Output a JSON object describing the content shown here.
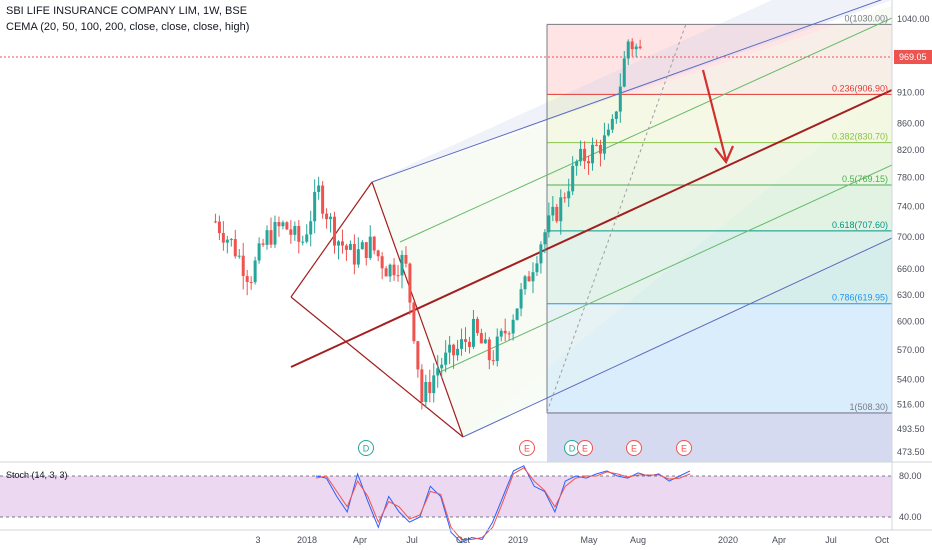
{
  "header": {
    "symbol_line": "SBI LIFE INSURANCE COMPANY LIM, 1W, BSE",
    "indicator_line": "CEMA (20, 50, 100, 200, close, close, close, high)"
  },
  "price_tag": {
    "value": "969.05",
    "color": "#ef5350"
  },
  "stoch_label": "Stoch (14, 3, 3)",
  "colors": {
    "up": "#26a69a",
    "down": "#ef5350",
    "pitchfork": "#a31f1f",
    "arrow": "#d32f2f",
    "stoch_k": "#2962ff",
    "stoch_d": "#ef5350",
    "stoch_band": "#e1bee7"
  },
  "chart_data": [
    {
      "type": "candlestick",
      "y_axis": {
        "scale": "log",
        "ticks": [
          "1040.00",
          "969.05",
          "910.00",
          "860.00",
          "820.00",
          "780.00",
          "740.00",
          "700.00",
          "660.00",
          "630.00",
          "600.00",
          "570.00",
          "540.00",
          "516.00",
          "493.50",
          "473.50"
        ]
      },
      "x_axis": {
        "ticks": [
          "3",
          "2018",
          "Apr",
          "Jul",
          "Oct",
          "2019",
          "May",
          "Aug",
          "2020",
          "Apr",
          "Jul",
          "Oct"
        ]
      },
      "fib_levels": [
        {
          "label": "0(1030.00)",
          "price": 1030.0,
          "color": "#787b86"
        },
        {
          "label": "0.236(906.90)",
          "price": 906.9,
          "color": "#e53935"
        },
        {
          "label": "0.382(830.70)",
          "price": 830.7,
          "color": "#8bc34a"
        },
        {
          "label": "0.5(769.15)",
          "price": 769.15,
          "color": "#4caf50"
        },
        {
          "label": "0.618(707.60)",
          "price": 707.6,
          "color": "#009688"
        },
        {
          "label": "0.786(619.95)",
          "price": 619.95,
          "color": "#2196f3"
        },
        {
          "label": "1(508.30)",
          "price": 508.3,
          "color": "#787b86"
        }
      ],
      "event_markers": [
        {
          "label": "D",
          "x": "Feb 2018",
          "color": "#26a69a"
        },
        {
          "label": "E",
          "x": "Jan 2019",
          "color": "#ef5350"
        },
        {
          "label": "D",
          "x": "Apr 2019",
          "color": "#26a69a"
        },
        {
          "label": "E",
          "x": "Apr 2019",
          "color": "#ef5350"
        },
        {
          "label": "E",
          "x": "Jul 2019",
          "color": "#ef5350"
        },
        {
          "label": "E",
          "x": "Oct 2019",
          "color": "#ef5350"
        }
      ],
      "price_path": [
        [
          "2017-10",
          720
        ],
        [
          "2017-11",
          690
        ],
        [
          "2017-12",
          650
        ],
        [
          "2018-01",
          700
        ],
        [
          "2018-02",
          715
        ],
        [
          "2018-03",
          690
        ],
        [
          "2018-04",
          760
        ],
        [
          "2018-05",
          700
        ],
        [
          "2018-06",
          675
        ],
        [
          "2018-07",
          690
        ],
        [
          "2018-08",
          660
        ],
        [
          "2018-09",
          672
        ],
        [
          "2018-10",
          520
        ],
        [
          "2018-11",
          555
        ],
        [
          "2018-12",
          568
        ],
        [
          "2019-01",
          590
        ],
        [
          "2019-02",
          560
        ],
        [
          "2019-03",
          595
        ],
        [
          "2019-04",
          640
        ],
        [
          "2019-05",
          700
        ],
        [
          "2019-06",
          740
        ],
        [
          "2019-07",
          800
        ],
        [
          "2019-08",
          820
        ],
        [
          "2019-09",
          840
        ],
        [
          "2019-10",
          1000
        ],
        [
          "2019-11",
          970
        ]
      ]
    },
    {
      "type": "line",
      "name": "Stoch (14, 3, 3)",
      "y_axis": {
        "ticks": [
          "80.00",
          "40.00"
        ]
      },
      "series": [
        {
          "values": [
            80,
            78,
            60,
            45,
            82,
            55,
            30,
            60,
            45,
            35,
            40,
            70,
            60,
            25,
            15,
            20,
            18,
            35,
            60,
            85,
            90,
            70,
            65,
            45,
            75,
            80,
            78,
            82,
            85,
            80,
            78,
            83,
            80,
            82,
            75,
            80,
            85
          ]
        },
        {
          "values": [
            78,
            80,
            65,
            50,
            75,
            60,
            35,
            55,
            50,
            38,
            42,
            65,
            62,
            30,
            18,
            18,
            20,
            30,
            55,
            82,
            88,
            75,
            66,
            50,
            70,
            78,
            80,
            80,
            84,
            82,
            79,
            81,
            81,
            81,
            77,
            78,
            82
          ]
        }
      ]
    }
  ]
}
